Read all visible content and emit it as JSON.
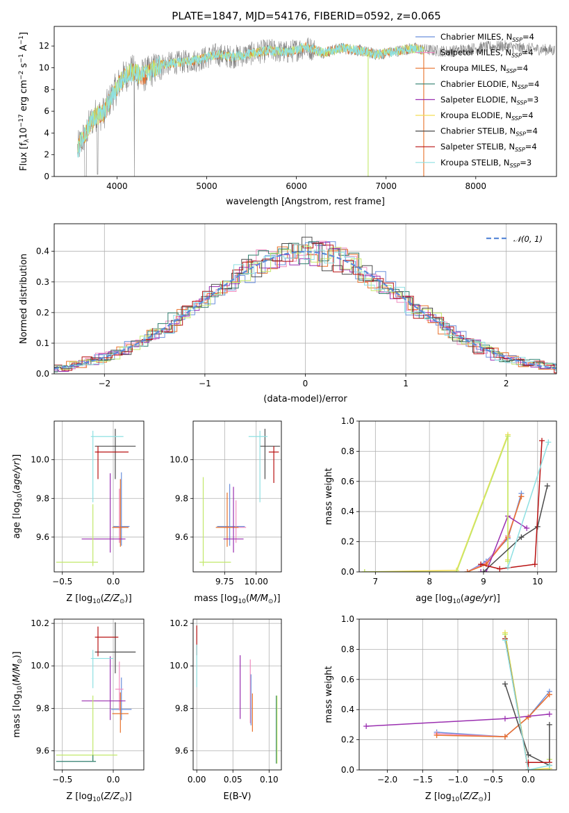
{
  "figure": {
    "title": "PLATE=1847, MJD=54176, FIBERID=0592, z=0.065"
  },
  "colors": {
    "chabrier_miles": "#6a8fdc",
    "salpeter_miles": "#f08cc0",
    "kroupa_miles": "#e8712a",
    "chabrier_elodie": "#2f7e6e",
    "salpeter_elodie": "#9a2fb0",
    "kroupa_elodie": "#f3dd55",
    "chabrier_stelib": "#4a4a4a",
    "salpeter_stelib": "#b81010",
    "kroupa_stelib": "#8ee0e2",
    "lime": "#c2e86a",
    "data": "#808080",
    "norm": "#5b8ad8"
  },
  "chart_data": [
    {
      "id": "spectrum",
      "type": "line",
      "title": "PLATE=1847, MJD=54176, FIBERID=0592, z=0.065",
      "xlabel": "wavelength [Angstrom, rest frame]",
      "ylabel": "Flux [f_λ 10^-17 erg cm^-2 s^-1 A^-1]",
      "xlim": [
        3300,
        8900
      ],
      "ylim": [
        0,
        13.8
      ],
      "xticks": [
        4000,
        5000,
        6000,
        7000,
        8000
      ],
      "yticks": [
        0,
        2,
        4,
        6,
        8,
        10,
        12
      ],
      "legend_position": "right",
      "legend": [
        "Chabrier MILES, N_SSP=4",
        "Salpeter MILES, N_SSP=4",
        "Kroupa MILES, N_SSP=4",
        "Chabrier ELODIE, N_SSP=4",
        "Salpeter ELODIE, N_SSP=3",
        "Kroupa ELODIE, N_SSP=4",
        "Chabrier STELIB, N_SSP=4",
        "Salpeter STELIB, N_SSP=4",
        "Kroupa STELIB, N_SSP=3"
      ],
      "model_continuum": {
        "x": [
          3560,
          3650,
          3750,
          3850,
          3950,
          4050,
          4150,
          4300,
          4500,
          4700,
          4900,
          5100,
          5300,
          5500,
          5700,
          5900,
          6100,
          6300,
          6500,
          6700,
          6900,
          7100,
          7300,
          7420
        ],
        "y": [
          2.5,
          4.0,
          5.5,
          5.8,
          7.4,
          8.8,
          9.6,
          9.3,
          10.3,
          10.5,
          10.7,
          11.2,
          11.0,
          11.3,
          11.6,
          11.4,
          11.9,
          11.4,
          11.8,
          11.6,
          11.2,
          11.5,
          11.8,
          11.6
        ]
      },
      "data_continuum": {
        "x": [
          3560,
          3650,
          3750,
          3850,
          3950,
          4050,
          4150,
          4300,
          4500,
          4700,
          4900,
          5100,
          5300,
          5500,
          5700,
          5900,
          6100,
          6300,
          6500,
          6700,
          6900,
          7100,
          7300,
          7500,
          7700,
          7900,
          8100,
          8300,
          8500,
          8700,
          8880
        ],
        "y": [
          2.5,
          4.0,
          5.6,
          5.8,
          7.5,
          8.9,
          9.7,
          9.3,
          10.3,
          10.5,
          10.7,
          11.2,
          11.0,
          11.3,
          11.6,
          11.4,
          11.9,
          11.4,
          11.8,
          11.6,
          11.2,
          11.5,
          11.8,
          11.6,
          11.5,
          11.7,
          11.9,
          12.0,
          11.8,
          11.7,
          11.6
        ]
      }
    },
    {
      "id": "residual-histogram",
      "type": "line",
      "xlabel": "(data-model)/error",
      "ylabel": "Normed distribution",
      "xlim": [
        -2.5,
        2.5
      ],
      "ylim": [
        0,
        0.49
      ],
      "xticks": [
        -2,
        -1,
        0,
        1,
        2
      ],
      "xtick_labels": [
        "−2",
        "−1",
        "0",
        "1",
        "2"
      ],
      "yticks": [
        0.0,
        0.1,
        0.2,
        0.3,
        0.4
      ],
      "grid": true,
      "legend": [
        "𝒩(0, 1)"
      ],
      "legend_position": "top-right",
      "note": "Nine step histograms, one per model, scattered around the standard normal curve."
    },
    {
      "id": "age-vs-Z",
      "type": "scatter",
      "xlabel": "Z [log10(Z/Z⊙)]",
      "ylabel": "age  [log10(age/yr)]",
      "xlim": [
        -0.58,
        0.3
      ],
      "ylim": [
        9.42,
        10.2
      ],
      "xticks": [
        -0.5,
        0.0
      ],
      "xtick_labels": [
        "−0.5",
        "0.0"
      ],
      "yticks": [
        9.6,
        9.8,
        10.0
      ],
      "grid": true,
      "errorbars": [
        {
          "model": "Chabrier MILES",
          "x": 0.08,
          "xerr": [
            0.08,
            0.08
          ],
          "y": 9.655,
          "yerr": [
            0.1,
            0.28
          ]
        },
        {
          "model": "Salpeter MILES",
          "x": 0.06,
          "xerr": [
            0.05,
            0.05
          ],
          "y": 9.65,
          "yerr": [
            0.08,
            0.2
          ]
        },
        {
          "model": "Kroupa MILES",
          "x": 0.07,
          "xerr": [
            0.08,
            0.08
          ],
          "y": 9.65,
          "yerr": [
            0.1,
            0.25
          ]
        },
        {
          "model": "Salpeter ELODIE",
          "x": -0.03,
          "xerr": [
            0.28,
            0.15
          ],
          "y": 9.59,
          "yerr": [
            0.07,
            0.34
          ]
        },
        {
          "model": "Kroupa ELODIE / lime",
          "x": -0.2,
          "xerr": [
            0.36,
            0.05
          ],
          "y": 9.47,
          "yerr": [
            0.02,
            0.3
          ]
        },
        {
          "model": "Chabrier STELIB",
          "x": 0.02,
          "xerr": [
            0.2,
            0.2
          ],
          "y": 10.07,
          "yerr": [
            0.17,
            0.09
          ]
        },
        {
          "model": "Salpeter STELIB",
          "x": -0.15,
          "xerr": [
            0.03,
            0.3
          ],
          "y": 10.04,
          "yerr": [
            0.14,
            0.03
          ]
        },
        {
          "model": "Kroupa STELIB",
          "x": -0.2,
          "xerr": [
            0.02,
            0.3
          ],
          "y": 10.12,
          "yerr": [
            0.34,
            0.03
          ]
        }
      ]
    },
    {
      "id": "age-vs-mass",
      "type": "scatter",
      "xlabel": "mass [log10(M/M⊙)]",
      "xlim": [
        9.5,
        10.2
      ],
      "ylim": [
        9.42,
        10.2
      ],
      "xticks": [
        9.75,
        10.0
      ],
      "xtick_labels": [
        "9.75",
        "10.00"
      ],
      "yticks": [
        9.6,
        9.8,
        10.0
      ],
      "grid": true,
      "errorbars": [
        {
          "model": "Chabrier MILES",
          "x": 9.79,
          "xerr": [
            0.1,
            0.12
          ],
          "y": 9.655,
          "yerr": [
            0.1,
            0.22
          ]
        },
        {
          "model": "Salpeter MILES",
          "x": 9.84,
          "xerr": [
            0.1,
            0.08
          ],
          "y": 9.65,
          "yerr": [
            0.08,
            0.14
          ]
        },
        {
          "model": "Kroupa MILES",
          "x": 9.77,
          "xerr": [
            0.09,
            0.09
          ],
          "y": 9.65,
          "yerr": [
            0.1,
            0.18
          ]
        },
        {
          "model": "Salpeter ELODIE",
          "x": 9.82,
          "xerr": [
            0.08,
            0.08
          ],
          "y": 9.59,
          "yerr": [
            0.07,
            0.27
          ]
        },
        {
          "model": "Kroupa ELODIE / lime",
          "x": 9.58,
          "xerr": [
            0.03,
            0.22
          ],
          "y": 9.47,
          "yerr": [
            0.02,
            0.44
          ]
        },
        {
          "model": "Chabrier STELIB",
          "x": 10.07,
          "xerr": [
            0.04,
            0.12
          ],
          "y": 10.07,
          "yerr": [
            0.17,
            0.09
          ]
        },
        {
          "model": "Salpeter STELIB",
          "x": 10.14,
          "xerr": [
            0.04,
            0.04
          ],
          "y": 10.04,
          "yerr": [
            0.16,
            0.03
          ]
        },
        {
          "model": "Kroupa STELIB",
          "x": 10.03,
          "xerr": [
            0.09,
            0.06
          ],
          "y": 10.12,
          "yerr": [
            0.34,
            0.03
          ]
        }
      ]
    },
    {
      "id": "weight-vs-age",
      "type": "line",
      "xlabel": "age  [log10(age/yr)]",
      "ylabel": "mass weight",
      "xlim": [
        6.7,
        10.35
      ],
      "ylim": [
        0,
        1.0
      ],
      "xticks": [
        7,
        8,
        9,
        10
      ],
      "yticks": [
        0.0,
        0.2,
        0.4,
        0.6,
        0.8,
        1.0
      ],
      "grid": true,
      "series": [
        {
          "model": "Chabrier MILES",
          "x": [
            8.7,
            9.05,
            9.45,
            9.7
          ],
          "y": [
            0.0,
            0.07,
            0.22,
            0.52
          ]
        },
        {
          "model": "Salpeter MILES",
          "x": [
            8.7,
            9.05,
            9.45,
            9.7
          ],
          "y": [
            0.0,
            0.06,
            0.24,
            0.5
          ]
        },
        {
          "model": "Kroupa MILES",
          "x": [
            8.7,
            9.05,
            9.45,
            9.7
          ],
          "y": [
            0.0,
            0.05,
            0.23,
            0.5
          ]
        },
        {
          "model": "Salpeter ELODIE",
          "x": [
            8.95,
            9.05,
            9.45,
            9.8
          ],
          "y": [
            0.0,
            0.0,
            0.37,
            0.29
          ]
        },
        {
          "model": "Kroupa ELODIE",
          "x": [
            6.8,
            8.5,
            9.45,
            9.45
          ],
          "y": [
            0.0,
            0.01,
            0.91,
            0.08
          ]
        },
        {
          "model": "lime",
          "x": [
            6.8,
            8.5,
            9.45,
            9.45
          ],
          "y": [
            0.0,
            0.0,
            0.9,
            0.07
          ]
        },
        {
          "model": "Chabrier STELIB",
          "x": [
            9.0,
            9.7,
            10.0,
            10.18
          ],
          "y": [
            0.0,
            0.23,
            0.3,
            0.57
          ]
        },
        {
          "model": "Salpeter STELIB",
          "x": [
            8.95,
            9.3,
            9.95,
            10.08
          ],
          "y": [
            0.05,
            0.02,
            0.05,
            0.87
          ]
        },
        {
          "model": "Kroupa STELIB",
          "x": [
            9.45,
            10.2
          ],
          "y": [
            0.03,
            0.86
          ]
        }
      ]
    },
    {
      "id": "mass-vs-Z",
      "type": "scatter",
      "xlabel": "Z [log10(Z/Z⊙)]",
      "ylabel": "mass [log10(M/M⊙)]",
      "xlim": [
        -0.58,
        0.3
      ],
      "ylim": [
        9.51,
        10.22
      ],
      "xticks": [
        -0.5,
        0.0
      ],
      "xtick_labels": [
        "−0.5",
        "0.0"
      ],
      "yticks": [
        9.6,
        9.8,
        10.0,
        10.2
      ],
      "grid": true,
      "errorbars": [
        {
          "model": "Chabrier MILES",
          "x": 0.08,
          "xerr": [
            0.1,
            0.1
          ],
          "y": 9.795,
          "yerr": [
            0.05,
            0.15
          ]
        },
        {
          "model": "Salpeter MILES",
          "x": 0.06,
          "xerr": [
            0.04,
            0.04
          ],
          "y": 9.89,
          "yerr": [
            0.1,
            0.13
          ]
        },
        {
          "model": "Kroupa MILES",
          "x": 0.07,
          "xerr": [
            0.08,
            0.08
          ],
          "y": 9.775,
          "yerr": [
            0.09,
            0.1
          ]
        },
        {
          "model": "Salpeter ELODIE",
          "x": -0.03,
          "xerr": [
            0.28,
            0.15
          ],
          "y": 9.835,
          "yerr": [
            0.09,
            0.21
          ]
        },
        {
          "model": "lime",
          "x": -0.2,
          "xerr": [
            0.36,
            0.24
          ],
          "y": 9.58,
          "yerr": [
            0.03,
            0.28
          ]
        },
        {
          "model": "Chabrier STELIB",
          "x": 0.02,
          "xerr": [
            0.2,
            0.2
          ],
          "y": 10.065,
          "yerr": [
            0.1,
            0.14
          ]
        },
        {
          "model": "Salpeter STELIB",
          "x": -0.15,
          "xerr": [
            0.03,
            0.2
          ],
          "y": 10.135,
          "yerr": [
            0.09,
            0.05
          ]
        },
        {
          "model": "Kroupa STELIB",
          "x": -0.2,
          "xerr": [
            0.02,
            0.2
          ],
          "y": 10.035,
          "yerr": [
            0.14,
            0.04
          ]
        },
        {
          "model": "Chabrier ELODIE",
          "x": -0.2,
          "xerr": [
            0.36,
            0.03
          ],
          "y": 9.55,
          "yerr": [
            0.0,
            0.03
          ]
        }
      ]
    },
    {
      "id": "mass-vs-EBV",
      "type": "scatter",
      "xlabel": "E(B-V)",
      "xlim": [
        -0.005,
        0.117
      ],
      "ylim": [
        9.51,
        10.22
      ],
      "xticks": [
        0.0,
        0.05,
        0.1
      ],
      "xtick_labels": [
        "0.00",
        "0.05",
        "0.10"
      ],
      "yticks": [
        9.6,
        9.8,
        10.0,
        10.2
      ],
      "grid": true,
      "errorbars": [
        {
          "model": "Salpeter STELIB",
          "x": 0.0,
          "y": 10.12,
          "yerr": [
            0.07,
            0.07
          ]
        },
        {
          "model": "Kroupa STELIB",
          "x": 0.0,
          "y": 10.0,
          "yerr": [
            0.1,
            0.1
          ]
        },
        {
          "model": "Salpeter ELODIE",
          "x": 0.06,
          "y": 9.9,
          "yerr": [
            0.15,
            0.15
          ]
        },
        {
          "model": "Salpeter MILES",
          "x": 0.074,
          "y": 9.88,
          "yerr": [
            0.15,
            0.15
          ]
        },
        {
          "model": "Chabrier MILES",
          "x": 0.075,
          "y": 9.84,
          "yerr": [
            0.12,
            0.12
          ]
        },
        {
          "model": "Kroupa MILES",
          "x": 0.077,
          "y": 9.78,
          "yerr": [
            0.09,
            0.09
          ]
        },
        {
          "model": "Chabrier ELODIE",
          "x": 0.11,
          "y": 9.7,
          "yerr": [
            0.16,
            0.16
          ]
        },
        {
          "model": "lime",
          "x": 0.111,
          "y": 9.7,
          "yerr": [
            0.16,
            0.16
          ]
        }
      ]
    },
    {
      "id": "weight-vs-Z",
      "type": "line",
      "xlabel": "Z [log10(Z/Z⊙)]",
      "ylabel": "mass weight",
      "xlim": [
        -2.4,
        0.4
      ],
      "ylim": [
        0,
        1.0
      ],
      "xticks": [
        -2.0,
        -1.5,
        -1.0,
        -0.5,
        0.0
      ],
      "xtick_labels": [
        "−2.0",
        "−1.5",
        "−1.0",
        "−0.5",
        "0.0"
      ],
      "yticks": [
        0.0,
        0.2,
        0.4,
        0.6,
        0.8,
        1.0
      ],
      "grid": true,
      "series": [
        {
          "model": "Chabrier MILES",
          "x": [
            -1.3,
            -0.33,
            0.0,
            0.3
          ],
          "y": [
            0.25,
            0.22,
            0.35,
            0.52
          ]
        },
        {
          "model": "Salpeter MILES",
          "x": [
            -1.3,
            -0.33,
            0.0,
            0.3
          ],
          "y": [
            0.24,
            0.22,
            0.35,
            0.5
          ]
        },
        {
          "model": "Kroupa MILES",
          "x": [
            -1.3,
            -0.33,
            0.0,
            0.3
          ],
          "y": [
            0.23,
            0.22,
            0.35,
            0.5
          ]
        },
        {
          "model": "Salpeter ELODIE",
          "x": [
            -2.3,
            -0.33,
            0.3
          ],
          "y": [
            0.29,
            0.34,
            0.37
          ]
        },
        {
          "model": "Kroupa ELODIE",
          "x": [
            -0.33,
            0.0,
            0.3
          ],
          "y": [
            0.91,
            0.0,
            0.01
          ]
        },
        {
          "model": "lime",
          "x": [
            -0.33,
            0.0,
            0.3,
            0.3
          ],
          "y": [
            0.9,
            0.0,
            0.0,
            0.07
          ]
        },
        {
          "model": "Chabrier STELIB",
          "x": [
            -0.33,
            0.0,
            0.3,
            0.3
          ],
          "y": [
            0.57,
            0.1,
            0.03,
            0.3
          ]
        },
        {
          "model": "Salpeter STELIB",
          "x": [
            -0.33,
            0.0,
            0.0,
            0.3
          ],
          "y": [
            0.87,
            0.0,
            0.05,
            0.05
          ]
        },
        {
          "model": "Kroupa STELIB",
          "x": [
            -0.33,
            0.0,
            0.3
          ],
          "y": [
            0.86,
            0.0,
            0.03
          ]
        }
      ]
    }
  ]
}
